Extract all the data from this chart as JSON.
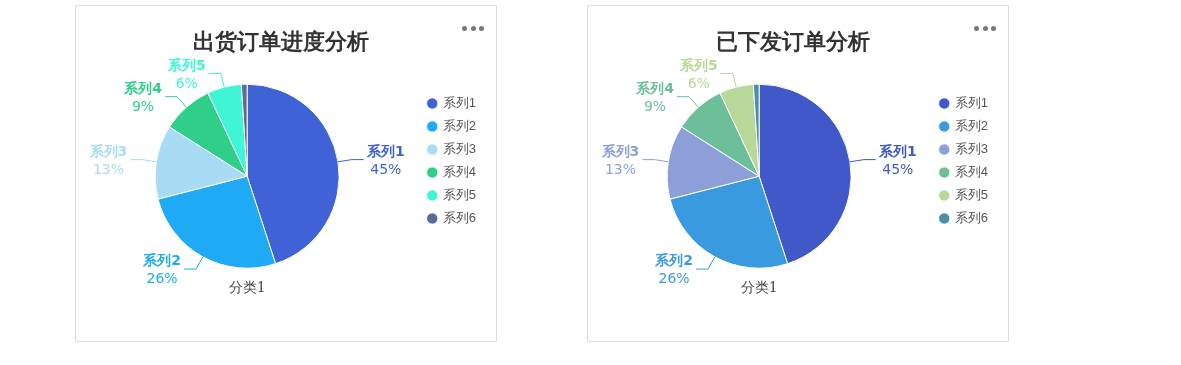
{
  "chart_data": [
    {
      "type": "pie",
      "title": "出货订单进度分析",
      "xlabel": "分类1",
      "categories": [
        "系列1",
        "系列2",
        "系列3",
        "系列4",
        "系列5",
        "系列6"
      ],
      "values": [
        45,
        26,
        13,
        9,
        6,
        1
      ],
      "value_labels": [
        "45%",
        "26%",
        "13%",
        "9%",
        "6%",
        null
      ],
      "colors": [
        "#3f62d6",
        "#1eaaf5",
        "#a8dcf5",
        "#2fcf8a",
        "#3ef5d5",
        "#5a6a9a"
      ],
      "legend": "right"
    },
    {
      "type": "pie",
      "title": "已下发订单分析",
      "xlabel": "分类1",
      "categories": [
        "系列1",
        "系列2",
        "系列3",
        "系列4",
        "系列5",
        "系列6"
      ],
      "values": [
        45,
        26,
        13,
        9,
        6,
        1
      ],
      "value_labels": [
        "45%",
        "26%",
        "13%",
        "9%",
        "6%",
        null
      ],
      "colors": [
        "#4058c8",
        "#3a9ae0",
        "#8d9fd8",
        "#6cbf98",
        "#b8d89a",
        "#4a90a8"
      ],
      "legend": "right"
    }
  ]
}
